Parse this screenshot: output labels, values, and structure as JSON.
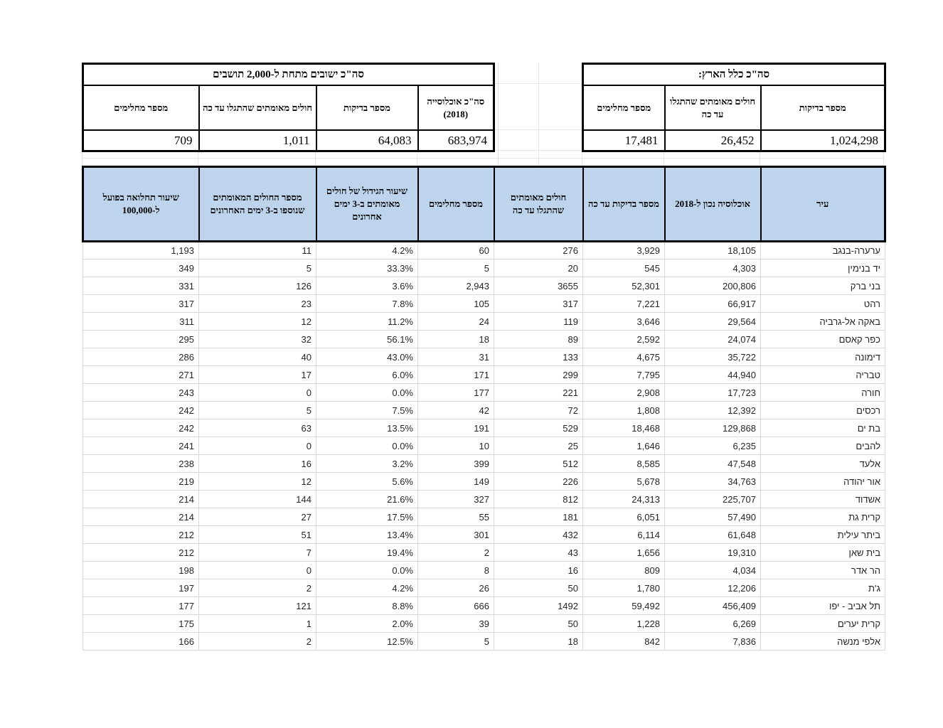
{
  "theme": {
    "header_fill": "#BDD4EC",
    "table_border": "#000000",
    "gridline": "#D9D9D9",
    "data_text": "#262626"
  },
  "national_summary": {
    "title": "סה\"כ כלל הארץ:",
    "columns": [
      "מספר בדיקות",
      "חולים מאומתים שהתגלו עד כה",
      "מספר מחלימים"
    ],
    "values": [
      "1,024,298",
      "26,452",
      "17,481"
    ]
  },
  "small_localities_summary": {
    "title": "סה\"כ ישובים מתחת ל-2,000 תושבים",
    "columns": [
      "סה\"כ אוכלוסייה (2018)",
      "מספר בדיקות",
      "חולים מאומתים שהתגלו עד כה",
      "מספר מחלימים"
    ],
    "values": [
      "683,974",
      "64,083",
      "1,011",
      "709"
    ]
  },
  "city_table": {
    "columns": [
      "עיר",
      "אוכלוסיה נכון ל-2018",
      "מספר בדיקות עד כה",
      "חולים מאומתים שהתגלו עד כה",
      "מספר מחלימים",
      "שיעור הגידול של חולים מאומתים ב-3 ימים אחרונים",
      "מספר החולים המאומתים שנוספו ב-3 ימים האחרונים",
      "שיעור תחלואה בפועל ל-100,000"
    ],
    "rows": [
      [
        "ערערה-בנגב",
        "18,105",
        "3,929",
        "276",
        "60",
        "4.2%",
        "11",
        "1,193"
      ],
      [
        "יד בנימין",
        "4,303",
        "545",
        "20",
        "5",
        "33.3%",
        "5",
        "349"
      ],
      [
        "בני ברק",
        "200,806",
        "52,301",
        "3655",
        "2,943",
        "3.6%",
        "126",
        "331"
      ],
      [
        "רהט",
        "66,917",
        "7,221",
        "317",
        "105",
        "7.8%",
        "23",
        "317"
      ],
      [
        "באקה אל-גרביה",
        "29,564",
        "3,646",
        "119",
        "24",
        "11.2%",
        "12",
        "311"
      ],
      [
        "כפר קאסם",
        "24,074",
        "2,592",
        "89",
        "18",
        "56.1%",
        "32",
        "295"
      ],
      [
        "דימונה",
        "35,722",
        "4,675",
        "133",
        "31",
        "43.0%",
        "40",
        "286"
      ],
      [
        "טבריה",
        "44,940",
        "7,795",
        "299",
        "171",
        "6.0%",
        "17",
        "271"
      ],
      [
        "חורה",
        "17,723",
        "2,908",
        "221",
        "177",
        "0.0%",
        "0",
        "243"
      ],
      [
        "רכסים",
        "12,392",
        "1,808",
        "72",
        "42",
        "7.5%",
        "5",
        "242"
      ],
      [
        "בת ים",
        "129,868",
        "18,468",
        "529",
        "191",
        "13.5%",
        "63",
        "242"
      ],
      [
        "להבים",
        "6,235",
        "1,646",
        "25",
        "10",
        "0.0%",
        "0",
        "241"
      ],
      [
        "אלעד",
        "47,548",
        "8,585",
        "512",
        "399",
        "3.2%",
        "16",
        "238"
      ],
      [
        "אור יהודה",
        "34,763",
        "5,678",
        "226",
        "149",
        "5.6%",
        "12",
        "219"
      ],
      [
        "אשדוד",
        "225,707",
        "24,313",
        "812",
        "327",
        "21.6%",
        "144",
        "214"
      ],
      [
        "קרית גת",
        "57,490",
        "6,051",
        "181",
        "55",
        "17.5%",
        "27",
        "214"
      ],
      [
        "ביתר עילית",
        "61,648",
        "6,114",
        "432",
        "301",
        "13.4%",
        "51",
        "212"
      ],
      [
        "בית שאן",
        "19,310",
        "1,656",
        "43",
        "2",
        "19.4%",
        "7",
        "212"
      ],
      [
        "הר אדר",
        "4,034",
        "809",
        "16",
        "8",
        "0.0%",
        "0",
        "198"
      ],
      [
        "ג'ת",
        "12,206",
        "1,780",
        "50",
        "26",
        "4.2%",
        "2",
        "197"
      ],
      [
        "תל אביב - יפו",
        "456,409",
        "59,492",
        "1492",
        "666",
        "8.8%",
        "121",
        "177"
      ],
      [
        "קרית יערים",
        "6,269",
        "1,228",
        "50",
        "39",
        "2.0%",
        "1",
        "175"
      ],
      [
        "אלפי מנשה",
        "7,836",
        "842",
        "18",
        "5",
        "12.5%",
        "2",
        "166"
      ]
    ]
  }
}
